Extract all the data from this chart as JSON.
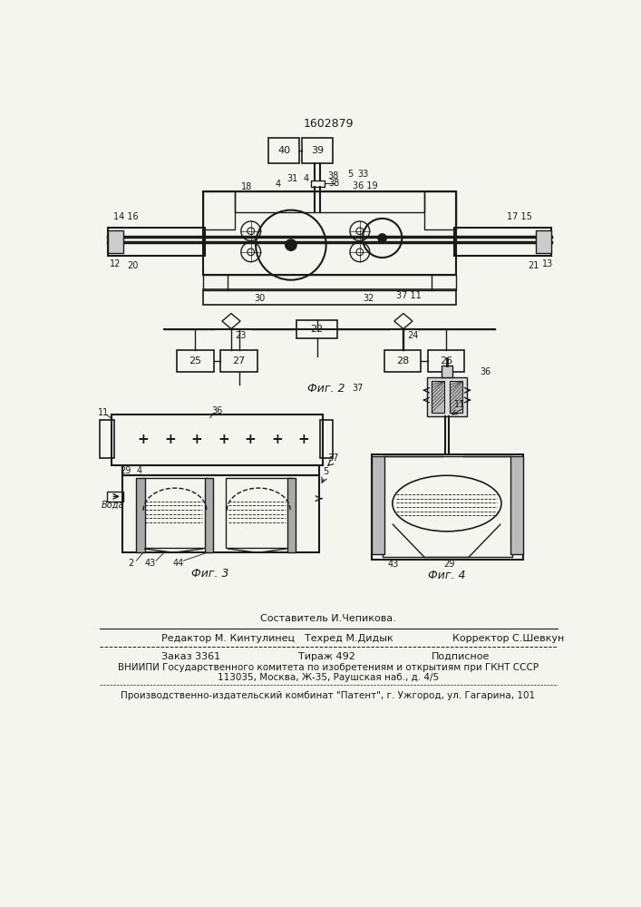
{
  "patent_number": "1602879",
  "bg_color": "#f5f5f0",
  "line_color": "#1a1a1a",
  "fig2_caption": "Фиг. 2",
  "fig3_caption": "Фиг. 3",
  "fig4_caption": "Фиг. 4",
  "footer_lines": [
    "Составитель И.Чепикова.",
    "Редактор М. Кинтулинец",
    "Техред М.Дидык",
    "Корректор С.Шевкун",
    "Заказ 3361",
    "Тираж 492",
    "Подписное",
    "ВНИИПИ Государственного комитета по изобретениям и открытиям при ГКНТ СССР",
    "113035, Москва, Ж-35, Раушская наб., д. 4/5",
    "Производственно-издательский комбинат \"Патент\", г. Ужгород, ул. Гагарина, 101"
  ]
}
